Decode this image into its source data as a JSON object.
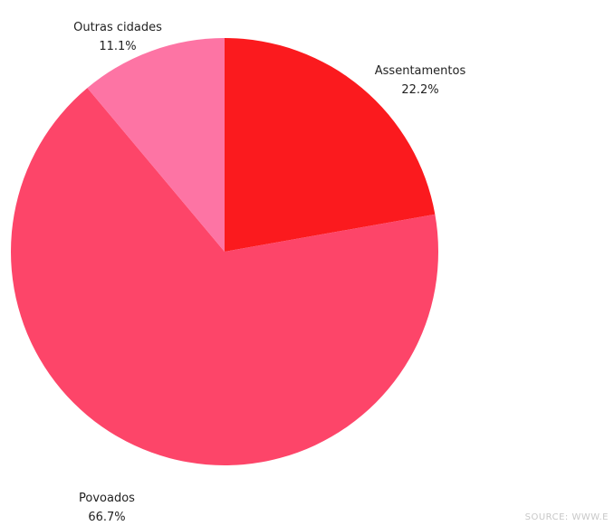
{
  "chart_data": {
    "type": "pie",
    "title": "",
    "slices": [
      {
        "label": "Assentamentos",
        "value": 22.2,
        "value_label": "22.2%",
        "color": "#fb1a1e"
      },
      {
        "label": "Povoados",
        "value": 66.7,
        "value_label": "66.7%",
        "color": "#fd4569"
      },
      {
        "label": "Outras cidades",
        "value": 11.1,
        "value_label": "11.1%",
        "color": "#fd74a4"
      }
    ],
    "start_angle": "12 o'clock",
    "direction": "clockwise"
  },
  "source": "SOURCE: WWW.E"
}
